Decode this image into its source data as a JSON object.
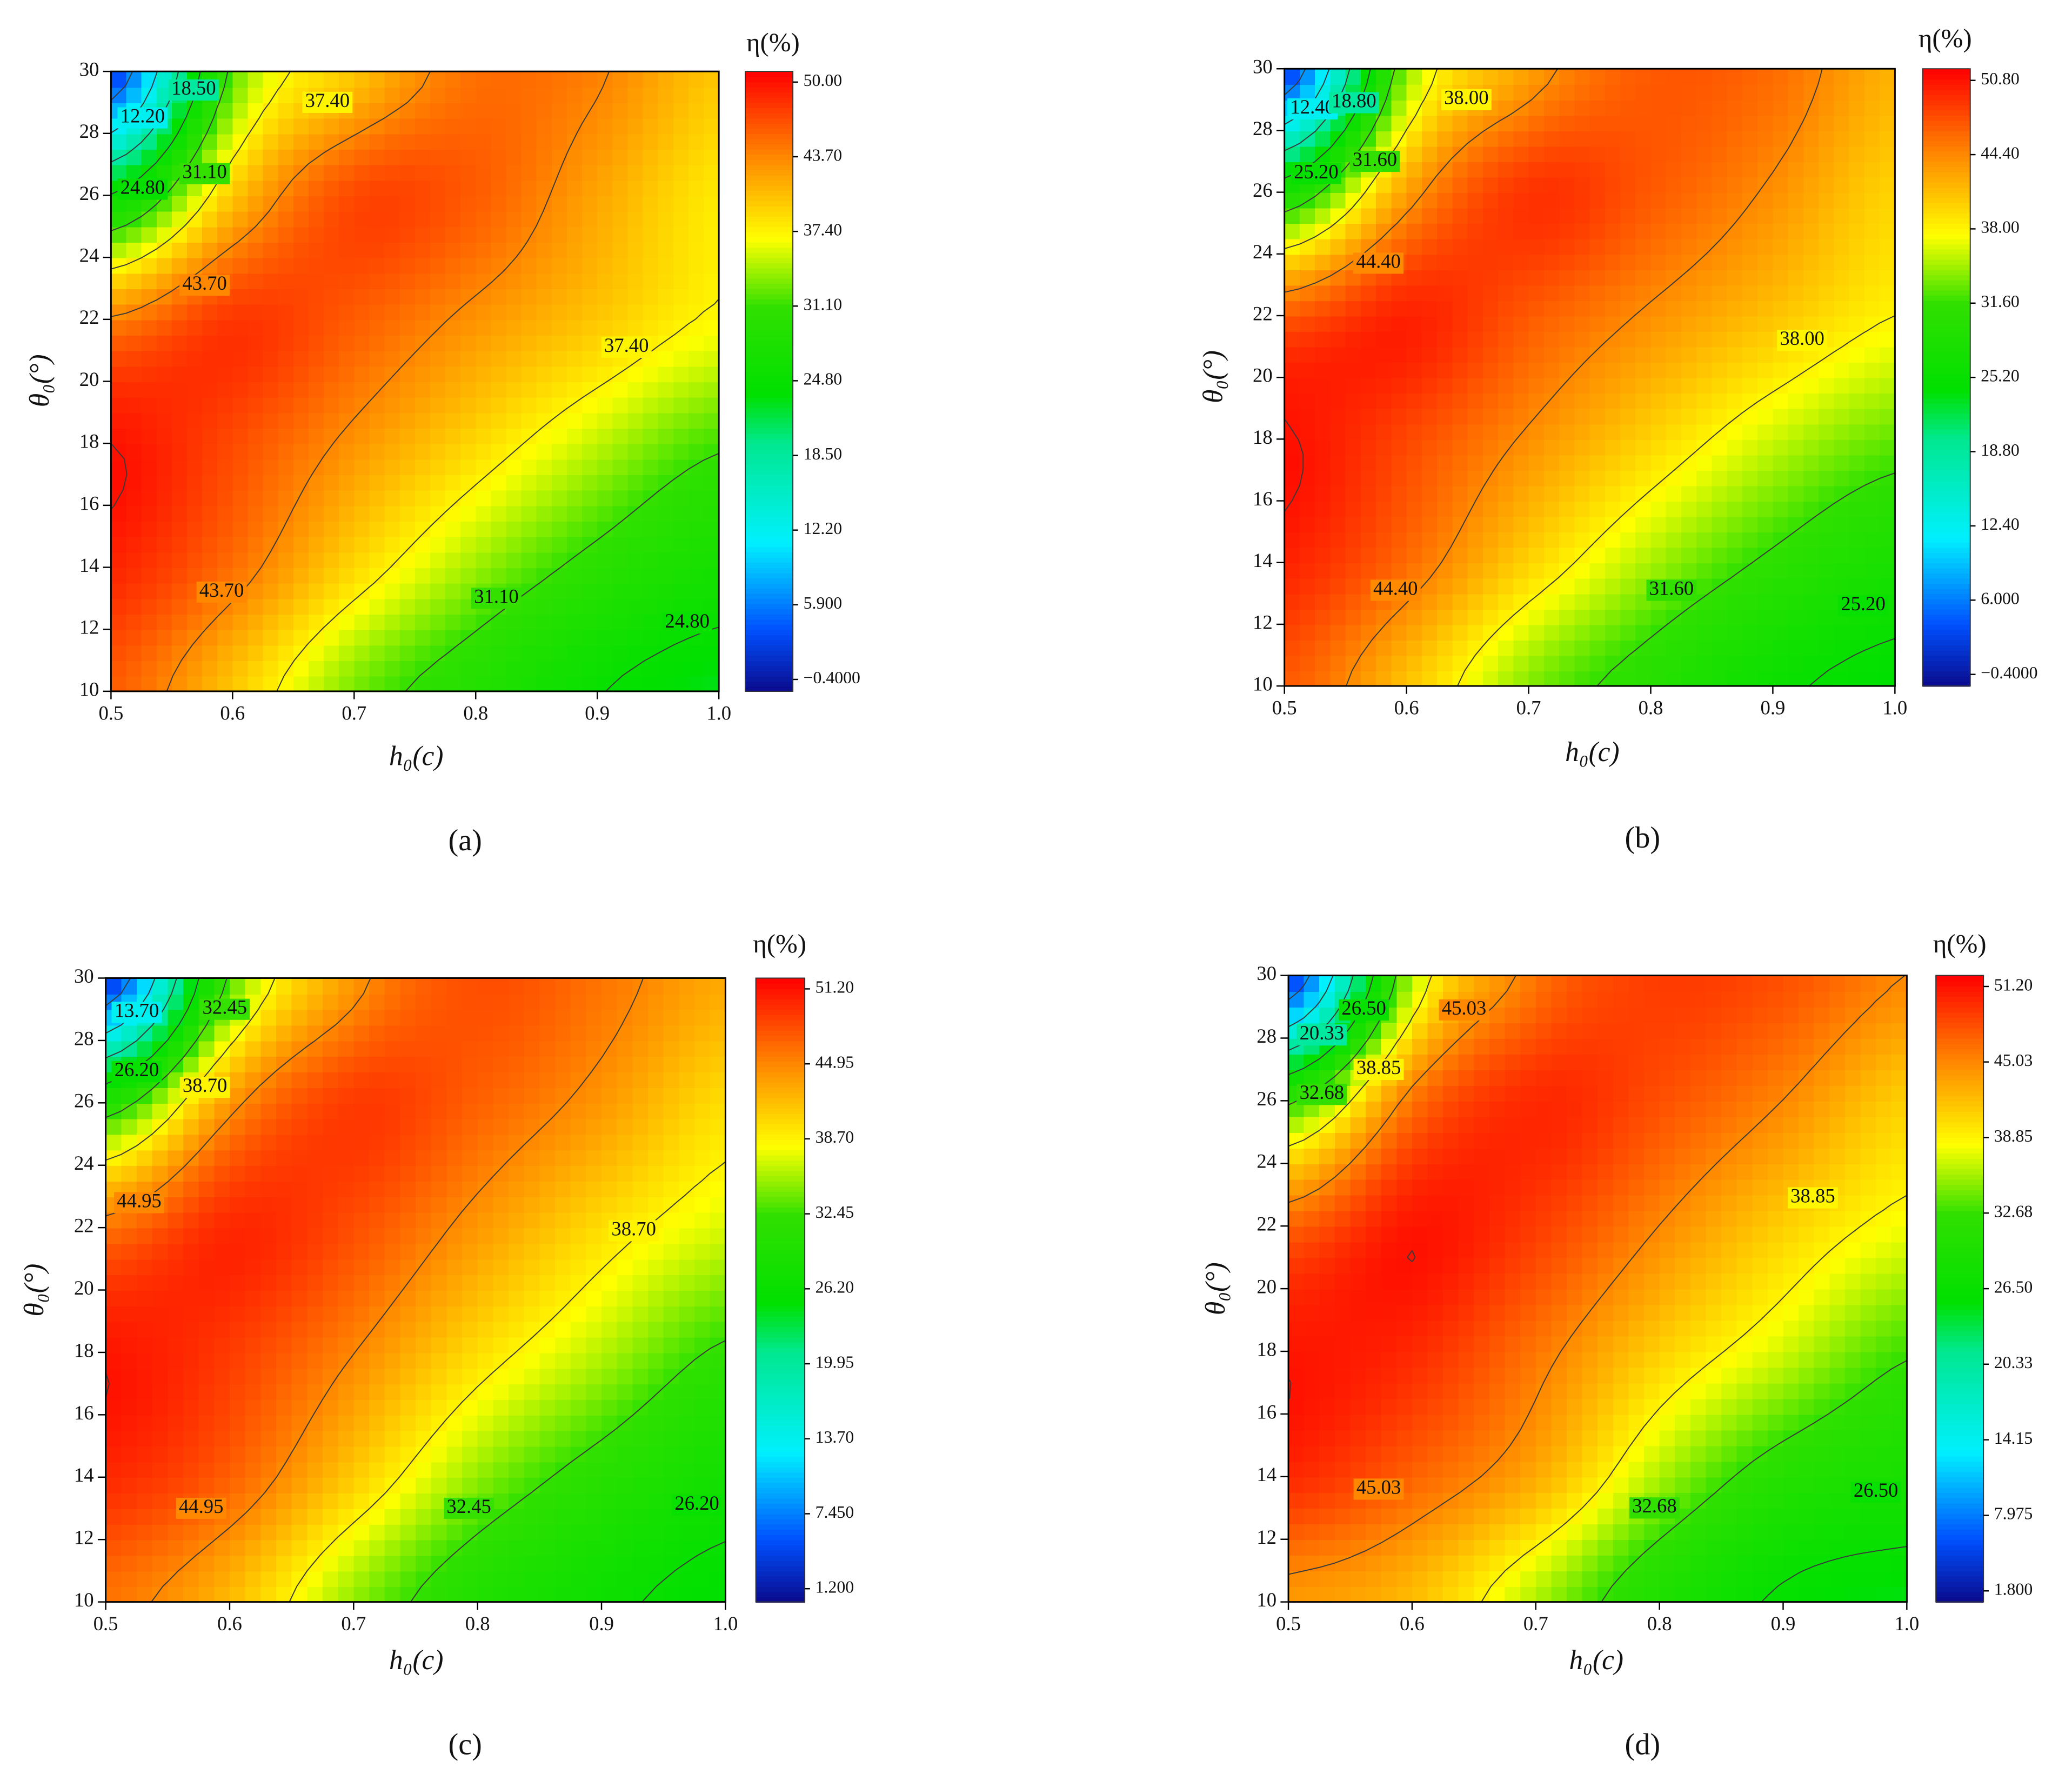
{
  "chart_data": [
    {
      "type": "contour",
      "panel": "(a)",
      "x_label": "h₀(c)",
      "y_label": "θ₀(°)",
      "colorbar_label": "η(%)",
      "xlim": [
        0.5,
        1
      ],
      "ylim": [
        10,
        30
      ],
      "xticks": [
        0.5,
        0.6,
        0.7,
        0.8,
        0.9,
        {
          "value": 1,
          "label": "1.0"
        }
      ],
      "yticks": [
        10,
        12,
        14,
        16,
        18,
        20,
        22,
        24,
        26,
        28,
        30
      ],
      "x": [
        0.5,
        0.6,
        0.7,
        0.8,
        0.9,
        1.0
      ],
      "y": [
        10,
        14,
        18,
        22,
        26,
        30
      ],
      "z": [
        [
          46,
          40,
          33,
          29,
          25,
          23
        ],
        [
          49,
          45,
          39,
          34,
          30,
          27
        ],
        [
          50,
          47,
          43,
          39,
          35,
          31.5
        ],
        [
          44,
          48,
          46,
          43,
          40,
          37
        ],
        [
          25,
          40,
          47,
          46,
          42,
          38
        ],
        [
          2,
          32,
          40,
          45,
          44,
          40
        ]
      ],
      "zlim": [
        -1.4,
        50.9
      ],
      "colorbar_ticks": [
        {
          "value": 50,
          "label": "50.00"
        },
        {
          "value": 43.7,
          "label": "43.70"
        },
        {
          "value": 37.4,
          "label": "37.40"
        },
        {
          "value": 31.1,
          "label": "31.10"
        },
        {
          "value": 24.8,
          "label": "24.80"
        },
        {
          "value": 18.5,
          "label": "18.50"
        },
        {
          "value": 12.2,
          "label": "12.20"
        },
        {
          "value": 5.9,
          "label": "5.900"
        },
        {
          "value": -0.4,
          "label": "−0.4000"
        }
      ],
      "contour_labels": [
        {
          "value": 12.2,
          "label": "12.20",
          "x": 0.526,
          "y": 28.5
        },
        {
          "value": 18.5,
          "label": "18.50",
          "x": 0.568,
          "y": 29.4
        },
        {
          "value": 37.4,
          "label": "37.40",
          "x": 0.678,
          "y": 29.0
        },
        {
          "value": 31.1,
          "label": "31.10",
          "x": 0.577,
          "y": 26.7
        },
        {
          "value": 24.8,
          "label": "24.80",
          "x": 0.526,
          "y": 26.2
        },
        {
          "value": 43.7,
          "label": "43.70",
          "x": 0.577,
          "y": 23.1
        },
        {
          "value": 37.4,
          "label": "37.40",
          "x": 0.924,
          "y": 21.1
        },
        {
          "value": 43.7,
          "label": "43.70",
          "x": 0.591,
          "y": 13.2
        },
        {
          "value": 31.1,
          "label": "31.10",
          "x": 0.817,
          "y": 13.0
        },
        {
          "value": 24.8,
          "label": "24.80",
          "x": 0.974,
          "y": 12.2
        }
      ],
      "colorscale": [
        [
          0,
          "#0a0a8c"
        ],
        [
          0.1,
          "#0050ff"
        ],
        [
          0.24,
          "#00f0ff"
        ],
        [
          0.4,
          "#00e890"
        ],
        [
          0.48,
          "#00e000"
        ],
        [
          0.62,
          "#30e000"
        ],
        [
          0.73,
          "#ffff00"
        ],
        [
          0.86,
          "#ff8a00"
        ],
        [
          1,
          "#ff0000"
        ]
      ]
    },
    {
      "type": "contour",
      "panel": "(b)",
      "x_label": "h₀(c)",
      "y_label": "θ₀(°)",
      "colorbar_label": "η(%)",
      "xlim": [
        0.5,
        1
      ],
      "ylim": [
        10,
        30
      ],
      "xticks": [
        0.5,
        0.6,
        0.7,
        0.8,
        0.9,
        {
          "value": 1,
          "label": "1.0"
        }
      ],
      "yticks": [
        10,
        12,
        14,
        16,
        18,
        20,
        22,
        24,
        26,
        28,
        30
      ],
      "x": [
        0.5,
        0.6,
        0.7,
        0.8,
        0.9,
        1.0
      ],
      "y": [
        10,
        14,
        18,
        22,
        26,
        30
      ],
      "z": [
        [
          47,
          41,
          34,
          30,
          26,
          24
        ],
        [
          50,
          46,
          40,
          35,
          31,
          28
        ],
        [
          51,
          48,
          44,
          40,
          36,
          33
        ],
        [
          47,
          50,
          47,
          44,
          41,
          38
        ],
        [
          28,
          43,
          49,
          47,
          44,
          40
        ],
        [
          2,
          34,
          43,
          47,
          46,
          42
        ]
      ],
      "zlim": [
        -1.4,
        51.8
      ],
      "colorbar_ticks": [
        {
          "value": 50.8,
          "label": "50.80"
        },
        {
          "value": 44.4,
          "label": "44.40"
        },
        {
          "value": 38,
          "label": "38.00"
        },
        {
          "value": 31.6,
          "label": "31.60"
        },
        {
          "value": 25.2,
          "label": "25.20"
        },
        {
          "value": 18.8,
          "label": "18.80"
        },
        {
          "value": 12.4,
          "label": "12.40"
        },
        {
          "value": 6,
          "label": "6.000"
        },
        {
          "value": -0.4,
          "label": "−0.4000"
        }
      ],
      "contour_labels": [
        {
          "value": 12.4,
          "label": "12.40",
          "x": 0.523,
          "y": 28.7
        },
        {
          "value": 18.8,
          "label": "18.80",
          "x": 0.557,
          "y": 28.9
        },
        {
          "value": 38,
          "label": "38.00",
          "x": 0.649,
          "y": 29.0
        },
        {
          "value": 25.2,
          "label": "25.20",
          "x": 0.526,
          "y": 26.6
        },
        {
          "value": 31.6,
          "label": "31.60",
          "x": 0.574,
          "y": 27.0
        },
        {
          "value": 44.4,
          "label": "44.40",
          "x": 0.577,
          "y": 23.7
        },
        {
          "value": 38,
          "label": "38.00",
          "x": 0.924,
          "y": 21.2
        },
        {
          "value": 44.4,
          "label": "44.40",
          "x": 0.591,
          "y": 13.1
        },
        {
          "value": 31.6,
          "label": "31.60",
          "x": 0.817,
          "y": 13.1
        },
        {
          "value": 25.2,
          "label": "25.20",
          "x": 0.974,
          "y": 12.6
        }
      ],
      "colorscale": [
        [
          0,
          "#0a0a8c"
        ],
        [
          0.1,
          "#0050ff"
        ],
        [
          0.24,
          "#00f0ff"
        ],
        [
          0.4,
          "#00e890"
        ],
        [
          0.48,
          "#00e000"
        ],
        [
          0.62,
          "#30e000"
        ],
        [
          0.73,
          "#ffff00"
        ],
        [
          0.86,
          "#ff8a00"
        ],
        [
          1,
          "#ff0000"
        ]
      ]
    },
    {
      "type": "contour",
      "panel": "(c)",
      "x_label": "h₀(c)",
      "y_label": "θ₀(°)",
      "colorbar_label": "η(%)",
      "xlim": [
        0.5,
        1
      ],
      "ylim": [
        10,
        30
      ],
      "xticks": [
        0.5,
        0.6,
        0.7,
        0.8,
        0.9,
        {
          "value": 1,
          "label": "1.0"
        }
      ],
      "yticks": [
        10,
        12,
        14,
        16,
        18,
        20,
        22,
        24,
        26,
        28,
        30
      ],
      "x": [
        0.5,
        0.6,
        0.7,
        0.8,
        0.9,
        1.0
      ],
      "y": [
        10,
        14,
        18,
        22,
        26,
        30
      ],
      "z": [
        [
          46,
          42,
          35,
          30,
          27,
          25
        ],
        [
          50,
          47,
          41,
          35,
          31,
          28
        ],
        [
          51,
          49,
          45,
          40,
          36,
          32
        ],
        [
          46,
          50,
          48,
          44,
          40,
          37
        ],
        [
          30,
          44,
          49,
          47,
          44,
          40
        ],
        [
          3,
          33,
          44,
          48,
          46,
          43
        ]
      ],
      "zlim": [
        0.1,
        52.1
      ],
      "colorbar_ticks": [
        {
          "value": 51.2,
          "label": "51.20"
        },
        {
          "value": 44.95,
          "label": "44.95"
        },
        {
          "value": 38.7,
          "label": "38.70"
        },
        {
          "value": 32.45,
          "label": "32.45"
        },
        {
          "value": 26.2,
          "label": "26.20"
        },
        {
          "value": 19.95,
          "label": "19.95"
        },
        {
          "value": 13.7,
          "label": "13.70"
        },
        {
          "value": 7.45,
          "label": "7.450"
        },
        {
          "value": 1.2,
          "label": "1.200"
        }
      ],
      "contour_labels": [
        {
          "value": 13.7,
          "label": "13.70",
          "x": 0.525,
          "y": 28.9
        },
        {
          "value": 32.45,
          "label": "32.45",
          "x": 0.596,
          "y": 29.0
        },
        {
          "value": 26.2,
          "label": "26.20",
          "x": 0.525,
          "y": 27.0
        },
        {
          "value": 38.7,
          "label": "38.70",
          "x": 0.58,
          "y": 26.5
        },
        {
          "value": 44.95,
          "label": "44.95",
          "x": 0.527,
          "y": 22.8
        },
        {
          "value": 38.7,
          "label": "38.70",
          "x": 0.926,
          "y": 21.9
        },
        {
          "value": 44.95,
          "label": "44.95",
          "x": 0.577,
          "y": 13.0
        },
        {
          "value": 32.45,
          "label": "32.45",
          "x": 0.793,
          "y": 13.0
        },
        {
          "value": 26.2,
          "label": "26.20",
          "x": 0.977,
          "y": 13.1
        }
      ],
      "colorscale": [
        [
          0,
          "#0a0a8c"
        ],
        [
          0.1,
          "#0050ff"
        ],
        [
          0.24,
          "#00f0ff"
        ],
        [
          0.4,
          "#00e890"
        ],
        [
          0.48,
          "#00e000"
        ],
        [
          0.62,
          "#30e000"
        ],
        [
          0.73,
          "#ffff00"
        ],
        [
          0.86,
          "#ff8a00"
        ],
        [
          1,
          "#ff0000"
        ]
      ]
    },
    {
      "type": "contour",
      "panel": "(d)",
      "x_label": "h₀(c)",
      "y_label": "θ₀(°)",
      "colorbar_label": "η(%)",
      "xlim": [
        0.5,
        1
      ],
      "ylim": [
        10,
        30
      ],
      "xticks": [
        0.5,
        0.6,
        0.7,
        0.8,
        0.9,
        {
          "value": 1,
          "label": "1.0"
        }
      ],
      "yticks": [
        10,
        12,
        14,
        16,
        18,
        20,
        22,
        24,
        26,
        28,
        30
      ],
      "x": [
        0.5,
        0.6,
        0.7,
        0.8,
        0.9,
        1.0
      ],
      "y": [
        10,
        14,
        18,
        22,
        26,
        30
      ],
      "z": [
        [
          44,
          42,
          36,
          30,
          26,
          25
        ],
        [
          50,
          47,
          43,
          36,
          31,
          29
        ],
        [
          51,
          50,
          46,
          41,
          37,
          33
        ],
        [
          47,
          51,
          49,
          45,
          41,
          38
        ],
        [
          32,
          46,
          50,
          48,
          45,
          41
        ],
        [
          4,
          36,
          46,
          49,
          48,
          45
        ]
      ],
      "zlim": [
        0.9,
        52.1
      ],
      "colorbar_ticks": [
        {
          "value": 51.2,
          "label": "51.20"
        },
        {
          "value": 45.03,
          "label": "45.03"
        },
        {
          "value": 38.85,
          "label": "38.85"
        },
        {
          "value": 32.68,
          "label": "32.68"
        },
        {
          "value": 26.5,
          "label": "26.50"
        },
        {
          "value": 20.33,
          "label": "20.33"
        },
        {
          "value": 14.15,
          "label": "14.15"
        },
        {
          "value": 7.975,
          "label": "7.975"
        },
        {
          "value": 1.8,
          "label": "1.800"
        }
      ],
      "contour_labels": [
        {
          "value": 26.5,
          "label": "26.50",
          "x": 0.561,
          "y": 28.9
        },
        {
          "value": 45.03,
          "label": "45.03",
          "x": 0.642,
          "y": 28.9
        },
        {
          "value": 20.33,
          "label": "20.33",
          "x": 0.527,
          "y": 28.1
        },
        {
          "value": 38.85,
          "label": "38.85",
          "x": 0.573,
          "y": 27.0
        },
        {
          "value": 32.68,
          "label": "32.68",
          "x": 0.527,
          "y": 26.2
        },
        {
          "value": 38.85,
          "label": "38.85",
          "x": 0.924,
          "y": 22.9
        },
        {
          "value": 45.03,
          "label": "45.03",
          "x": 0.573,
          "y": 13.6
        },
        {
          "value": 32.68,
          "label": "32.68",
          "x": 0.796,
          "y": 13.0
        },
        {
          "value": 26.5,
          "label": "26.50",
          "x": 0.975,
          "y": 13.5
        }
      ],
      "colorscale": [
        [
          0,
          "#0a0a8c"
        ],
        [
          0.1,
          "#0050ff"
        ],
        [
          0.24,
          "#00f0ff"
        ],
        [
          0.4,
          "#00e890"
        ],
        [
          0.48,
          "#00e000"
        ],
        [
          0.62,
          "#30e000"
        ],
        [
          0.73,
          "#ffff00"
        ],
        [
          0.86,
          "#ff8a00"
        ],
        [
          1,
          "#ff0000"
        ]
      ]
    }
  ]
}
